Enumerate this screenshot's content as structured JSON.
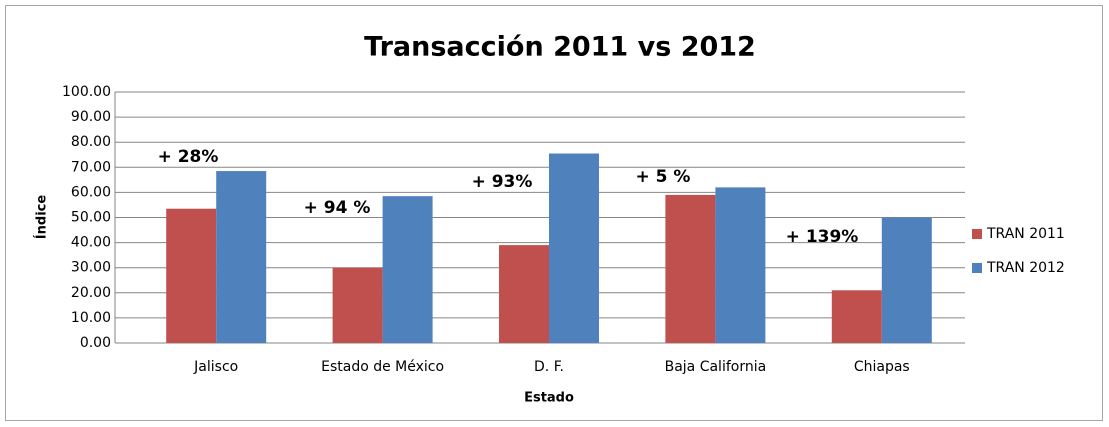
{
  "chart_data": {
    "type": "bar",
    "title": "Transacción 2011 vs 2012",
    "x_label": "Estado",
    "y_label": "Índice",
    "categories": [
      "Jalisco",
      "Estado de México",
      "D. F.",
      "Baja California",
      "Chiapas"
    ],
    "series": [
      {
        "name": "TRAN 2011",
        "color": "#c0504d",
        "values": [
          53.5,
          30,
          39,
          59,
          21
        ]
      },
      {
        "name": "TRAN 2012",
        "color": "#4f81bd",
        "values": [
          68.5,
          58.5,
          75.5,
          62,
          50
        ]
      }
    ],
    "annotations": [
      "+ 28%",
      "+ 94 %",
      "+ 93%",
      "+ 5 %",
      "+ 139%"
    ],
    "ylim": [
      0,
      100
    ],
    "yticks": [
      {
        "value": 0,
        "label": "0.00"
      },
      {
        "value": 10,
        "label": "10.00"
      },
      {
        "value": 20,
        "label": "20.00"
      },
      {
        "value": 30,
        "label": "30.00"
      },
      {
        "value": 40,
        "label": "40.00"
      },
      {
        "value": 50,
        "label": "50.00"
      },
      {
        "value": 60,
        "label": "60.00"
      },
      {
        "value": 70,
        "label": "70.00"
      },
      {
        "value": 80,
        "label": "80.00"
      },
      {
        "value": 90,
        "label": "90.00"
      },
      {
        "value": 100,
        "label": "100.00"
      }
    ],
    "grid": true,
    "legend": "right"
  }
}
